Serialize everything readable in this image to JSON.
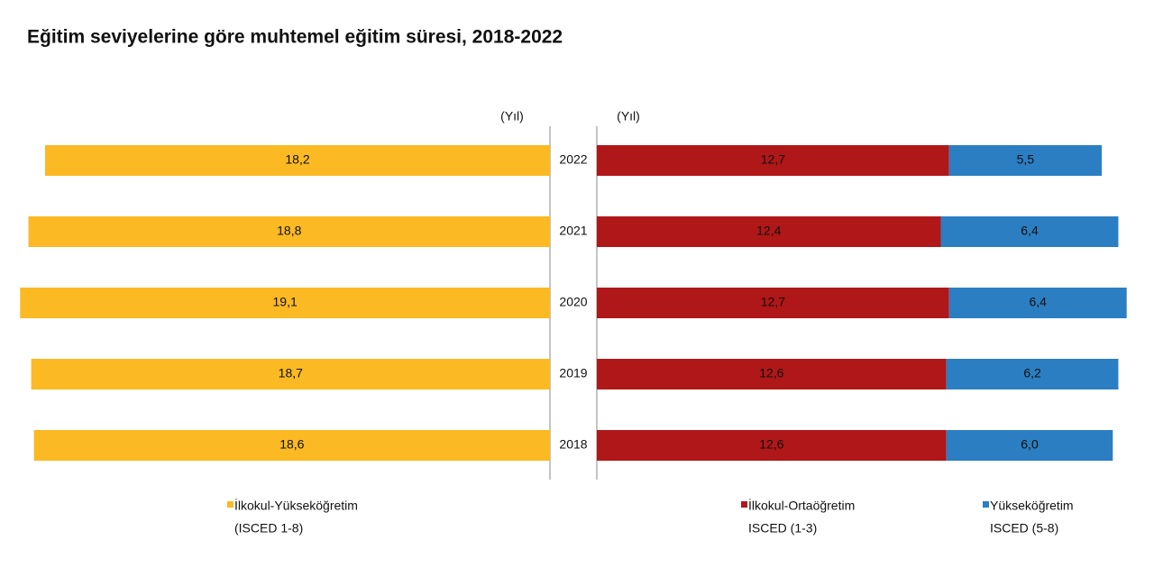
{
  "chart_data": {
    "type": "bar",
    "orientation": "horizontal",
    "title": "Eğitim seviyelerine göre muhtemel eğitim süresi, 2018-2022",
    "categories": [
      "2022",
      "2021",
      "2020",
      "2019",
      "2018"
    ],
    "xlim": [
      0,
      19.5
    ],
    "panels": [
      {
        "side": "left",
        "unit_label": "(Yıl)"
      },
      {
        "side": "right",
        "unit_label": "(Yıl)"
      }
    ],
    "series": [
      {
        "name": "İlkokul-Yükseköğretim",
        "name_line2": "(ISCED 1-8)",
        "color": "#fbb923",
        "panel": 0,
        "values": [
          18.2,
          18.8,
          19.1,
          18.7,
          18.6
        ],
        "value_labels": [
          "18,2",
          "18,8",
          "19,1",
          "18,7",
          "18,6"
        ]
      },
      {
        "name": "İlkokul-Ortaöğretim",
        "name_line2": "ISCED (1-3)",
        "color": "#b01718",
        "panel": 1,
        "values": [
          12.7,
          12.4,
          12.7,
          12.6,
          12.6
        ],
        "value_labels": [
          "12,7",
          "12,4",
          "12,7",
          "12,6",
          "12,6"
        ]
      },
      {
        "name": "Yükseköğretim",
        "name_line2": "ISCED (5-8)",
        "color": "#2b7ec1",
        "panel": 1,
        "values": [
          5.5,
          6.4,
          6.4,
          6.2,
          6.0
        ],
        "value_labels": [
          "5,5",
          "6,4",
          "6,4",
          "6,2",
          "6,0"
        ]
      }
    ]
  }
}
